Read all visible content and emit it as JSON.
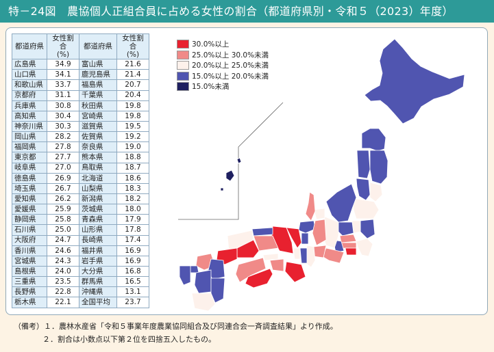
{
  "header": {
    "title": "特－24図　農協個人正組合員に占める女性の割合（都道府県別・令和５（2023）年度）"
  },
  "table": {
    "headers": [
      "都道府県",
      "女性割合\n(%)",
      "都道府県",
      "女性割合\n(%)"
    ],
    "rows": [
      [
        "広島県",
        "34.9",
        "富山県",
        "21.6"
      ],
      [
        "山口県",
        "34.1",
        "鹿児島県",
        "21.4"
      ],
      [
        "和歌山県",
        "33.7",
        "福島県",
        "20.7"
      ],
      [
        "京都府",
        "31.1",
        "千葉県",
        "20.4"
      ],
      [
        "兵庫県",
        "30.8",
        "秋田県",
        "19.8"
      ],
      [
        "高知県",
        "30.4",
        "宮崎県",
        "19.8"
      ],
      [
        "神奈川県",
        "30.3",
        "滋賀県",
        "19.5"
      ],
      [
        "岡山県",
        "28.2",
        "佐賀県",
        "19.2"
      ],
      [
        "福岡県",
        "27.8",
        "奈良県",
        "19.0"
      ],
      [
        "東京都",
        "27.7",
        "熊本県",
        "18.8"
      ],
      [
        "岐阜県",
        "27.0",
        "鳥取県",
        "18.7"
      ],
      [
        "徳島県",
        "26.9",
        "北海道",
        "18.6"
      ],
      [
        "埼玉県",
        "26.7",
        "山梨県",
        "18.3"
      ],
      [
        "愛知県",
        "26.2",
        "新潟県",
        "18.2"
      ],
      [
        "愛媛県",
        "25.9",
        "茨城県",
        "18.0"
      ],
      [
        "静岡県",
        "25.8",
        "青森県",
        "17.9"
      ],
      [
        "石川県",
        "25.0",
        "山形県",
        "17.8"
      ],
      [
        "大阪府",
        "24.7",
        "長崎県",
        "17.4"
      ],
      [
        "香川県",
        "24.6",
        "福井県",
        "16.9"
      ],
      [
        "宮城県",
        "24.3",
        "岩手県",
        "16.9"
      ],
      [
        "島根県",
        "24.0",
        "大分県",
        "16.8"
      ],
      [
        "三重県",
        "23.5",
        "群馬県",
        "16.5"
      ],
      [
        "長野県",
        "22.8",
        "沖縄県",
        "13.1"
      ],
      [
        "栃木県",
        "22.1",
        "全国平均",
        "23.7"
      ]
    ]
  },
  "legend": [
    {
      "label": "30.0%以上",
      "color": "#e8212f"
    },
    {
      "label": "25.0%以上 30.0%未満",
      "color": "#f08a88"
    },
    {
      "label": "20.0%以上 25.0%未満",
      "color": "#fdf1eb"
    },
    {
      "label": "15.0%以上 20.0%未満",
      "color": "#5055b0"
    },
    {
      "label": "15.0%未満",
      "color": "#1f2060"
    }
  ],
  "notes": [
    "（備考）１．農林水産省「令和５事業年度農業協同組合及び同連合会一斉調査結果」より作成。",
    "２．割合は小数点以下第２位を四捨五入したもの。"
  ],
  "chart_data": {
    "type": "table",
    "title": "特－24図　農協個人正組合員に占める女性の割合（都道府県別・令和５（2023）年度）",
    "unit": "%",
    "categories": [
      "広島県",
      "山口県",
      "和歌山県",
      "京都府",
      "兵庫県",
      "高知県",
      "神奈川県",
      "岡山県",
      "福岡県",
      "東京都",
      "岐阜県",
      "徳島県",
      "埼玉県",
      "愛知県",
      "愛媛県",
      "静岡県",
      "石川県",
      "大阪府",
      "香川県",
      "宮城県",
      "島根県",
      "三重県",
      "長野県",
      "栃木県",
      "富山県",
      "鹿児島県",
      "福島県",
      "千葉県",
      "秋田県",
      "宮崎県",
      "滋賀県",
      "佐賀県",
      "奈良県",
      "熊本県",
      "鳥取県",
      "北海道",
      "山梨県",
      "新潟県",
      "茨城県",
      "青森県",
      "山形県",
      "長崎県",
      "福井県",
      "岩手県",
      "大分県",
      "群馬県",
      "沖縄県",
      "全国平均"
    ],
    "values": [
      34.9,
      34.1,
      33.7,
      31.1,
      30.8,
      30.4,
      30.3,
      28.2,
      27.8,
      27.7,
      27.0,
      26.9,
      26.7,
      26.2,
      25.9,
      25.8,
      25.0,
      24.7,
      24.6,
      24.3,
      24.0,
      23.5,
      22.8,
      22.1,
      21.6,
      21.4,
      20.7,
      20.4,
      19.8,
      19.8,
      19.5,
      19.2,
      19.0,
      18.8,
      18.7,
      18.6,
      18.3,
      18.2,
      18.0,
      17.9,
      17.8,
      17.4,
      16.9,
      16.9,
      16.8,
      16.5,
      13.1,
      23.7
    ]
  }
}
